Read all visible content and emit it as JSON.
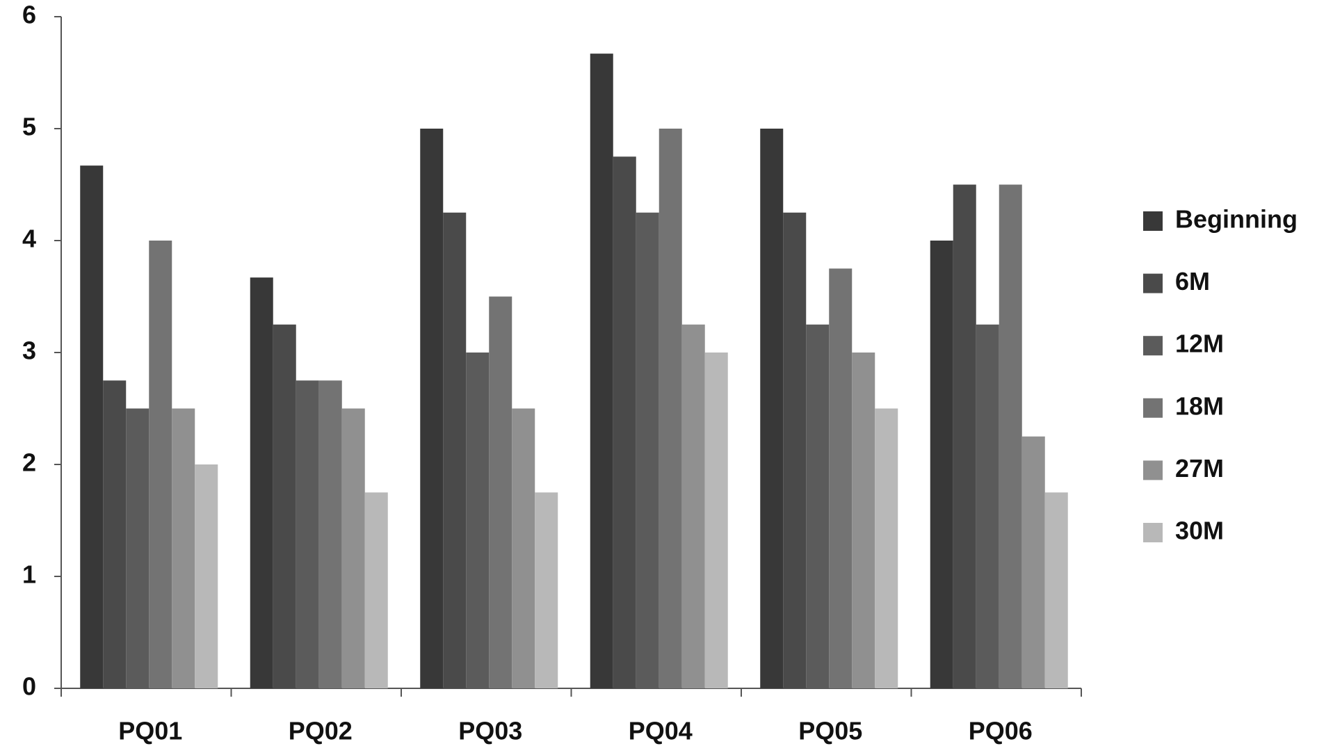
{
  "chart_data": {
    "type": "bar",
    "categories": [
      "PQ01",
      "PQ02",
      "PQ03",
      "PQ04",
      "PQ05",
      "PQ06"
    ],
    "series": [
      {
        "name": "Beginning",
        "color": "#383838",
        "values": [
          4.67,
          3.67,
          5.0,
          5.67,
          5.0,
          4.0
        ]
      },
      {
        "name": "6M",
        "color": "#4a4a4a",
        "values": [
          2.75,
          3.25,
          4.25,
          4.75,
          4.25,
          4.5
        ]
      },
      {
        "name": "12M",
        "color": "#5b5b5b",
        "values": [
          2.5,
          2.75,
          3.0,
          4.25,
          3.25,
          3.25
        ]
      },
      {
        "name": "18M",
        "color": "#737373",
        "values": [
          4.0,
          2.75,
          3.5,
          5.0,
          3.75,
          4.5
        ]
      },
      {
        "name": "27M",
        "color": "#909090",
        "values": [
          2.5,
          2.5,
          2.5,
          3.25,
          3.0,
          2.25
        ]
      },
      {
        "name": "30M",
        "color": "#b8b8b8",
        "values": [
          2.0,
          1.75,
          1.75,
          3.0,
          2.5,
          1.75
        ]
      }
    ],
    "ylim": [
      0,
      6
    ],
    "yticks": [
      0,
      1,
      2,
      3,
      4,
      5,
      6
    ],
    "grid": false,
    "legend": "right"
  }
}
